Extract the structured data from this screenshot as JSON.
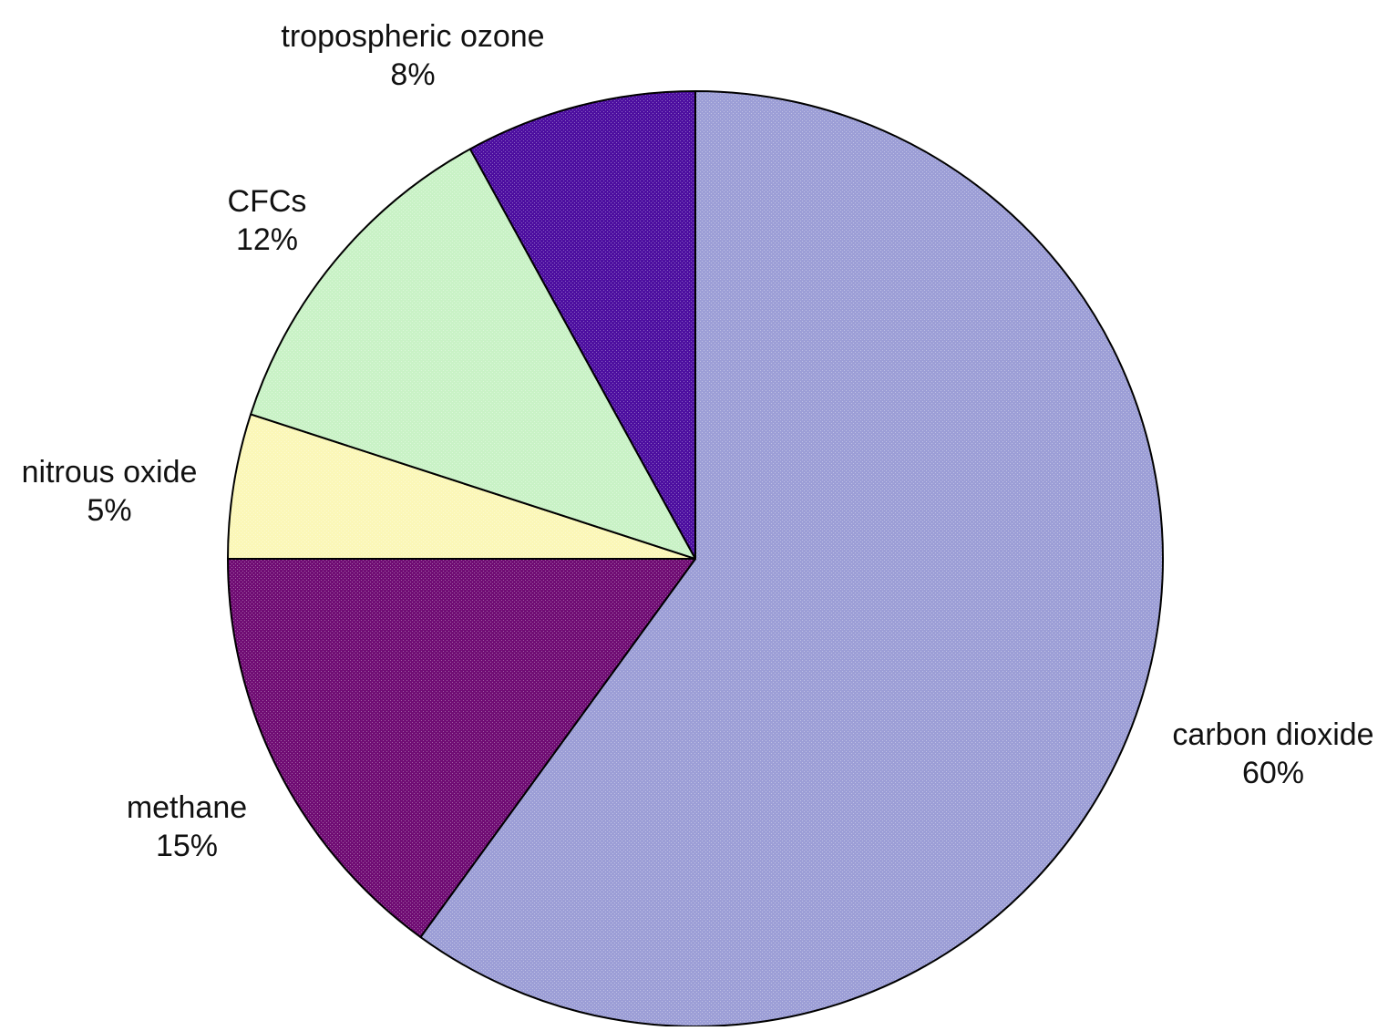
{
  "chart_data": {
    "type": "pie",
    "title": "",
    "start": "12 o'clock, clockwise",
    "slices": [
      {
        "label": "carbon dioxide",
        "value": 60,
        "value_label": "60%",
        "color": "#9c9ed6",
        "pattern": "fine-dither"
      },
      {
        "label": "methane",
        "value": 15,
        "value_label": "15%",
        "color": "#700d74",
        "pattern": "fine-dither"
      },
      {
        "label": "nitrous oxide",
        "value": 5,
        "value_label": "5%",
        "color": "#fbf7b8",
        "pattern": "fine-dither"
      },
      {
        "label": "CFCs",
        "value": 12,
        "value_label": "12%",
        "color": "#c9f2c6",
        "pattern": "fine-dither"
      },
      {
        "label": "tropospheric ozone",
        "value": 8,
        "value_label": "8%",
        "color": "#4d0fa0",
        "pattern": "fine-dither"
      }
    ]
  }
}
